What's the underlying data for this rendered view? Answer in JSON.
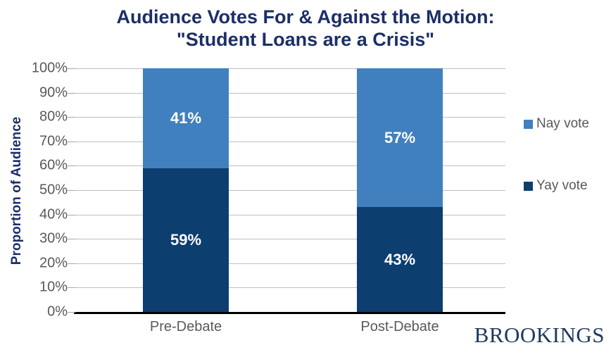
{
  "title": {
    "line1": "Audience Votes For & Against the Motion:",
    "line2": "\"Student Loans are a Crisis\""
  },
  "chart_data": {
    "type": "bar",
    "stacked": true,
    "categories": [
      "Pre-Debate",
      "Post-Debate"
    ],
    "series": [
      {
        "name": "Yay vote",
        "values": [
          59,
          43
        ],
        "color": "#0D3E70"
      },
      {
        "name": "Nay vote",
        "values": [
          41,
          57
        ],
        "color": "#4180BE"
      }
    ],
    "data_labels": [
      {
        "category": "Pre-Debate",
        "Yay vote": "59%",
        "Nay vote": "41%"
      },
      {
        "category": "Post-Debate",
        "Yay vote": "43%",
        "Nay vote": "57%"
      }
    ],
    "title": "Audience Votes For & Against the Motion: \"Student Loans are a Crisis\"",
    "xlabel": "",
    "ylabel": "Proportion of Audience",
    "yticks": [
      "0%",
      "10%",
      "20%",
      "30%",
      "40%",
      "50%",
      "60%",
      "70%",
      "80%",
      "90%",
      "100%"
    ],
    "ylim": [
      0,
      100
    ],
    "grid": true,
    "legend_position": "right",
    "legend_order": [
      "Nay vote",
      "Yay vote"
    ]
  },
  "colors": {
    "title_text": "#1B2F66",
    "axis_text": "#595959",
    "gridline": "#BFBFBF",
    "yay_bar": "#0D3E70",
    "nay_bar": "#4180BE",
    "logo_text": "#1E3A60"
  },
  "branding": {
    "logo_text": "BROOKINGS"
  }
}
